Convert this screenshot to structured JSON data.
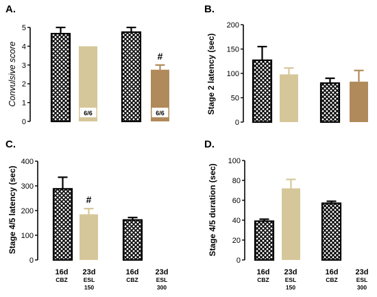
{
  "colors": {
    "cbz": "hatched-black",
    "esl150": "#d6c79a",
    "esl300": "#b08a5b",
    "axis": "#000000"
  },
  "x_groups": {
    "labels_main": [
      "16d",
      "23d",
      "16d",
      "23d"
    ],
    "labels_sub": [
      "CBZ",
      "ESL\n150",
      "CBZ",
      "ESL\n300"
    ]
  },
  "chart_data": [
    {
      "panel": "A.",
      "type": "bar",
      "ylabel": "Convulsive score",
      "ylim": [
        0,
        5
      ],
      "yticks": [
        0,
        1,
        2,
        3,
        4,
        5
      ],
      "bars": [
        {
          "group": "16d CBZ",
          "value": 4.67,
          "err": 0.33,
          "fill": "cbz"
        },
        {
          "group": "23d ESL 150",
          "value": 4.0,
          "err": 0,
          "fill": "esl150",
          "label": "6/6"
        },
        {
          "group": "16d CBZ",
          "value": 4.75,
          "err": 0.25,
          "fill": "cbz"
        },
        {
          "group": "23d ESL 300",
          "value": 2.75,
          "err": 0.25,
          "fill": "esl300",
          "label": "6/6",
          "marker": "#"
        }
      ]
    },
    {
      "panel": "B.",
      "type": "bar",
      "ylabel": "Stage 2 latency (sec)",
      "ylim": [
        0,
        200
      ],
      "yticks": [
        0,
        50,
        100,
        150,
        200
      ],
      "bars": [
        {
          "group": "16d CBZ",
          "value": 127,
          "err": 28,
          "fill": "cbz"
        },
        {
          "group": "23d ESL 150",
          "value": 98,
          "err": 13,
          "fill": "esl150"
        },
        {
          "group": "16d CBZ",
          "value": 80,
          "err": 10,
          "fill": "cbz"
        },
        {
          "group": "23d ESL 300",
          "value": 83,
          "err": 23,
          "fill": "esl300"
        }
      ]
    },
    {
      "panel": "C.",
      "type": "bar",
      "ylabel": "Stage 4/5 latency (sec)",
      "ylim": [
        0,
        400
      ],
      "yticks": [
        0,
        100,
        200,
        300,
        400
      ],
      "bars": [
        {
          "group": "16d CBZ",
          "value": 288,
          "err": 47,
          "fill": "cbz"
        },
        {
          "group": "23d ESL 150",
          "value": 185,
          "err": 23,
          "fill": "esl150",
          "marker": "#"
        },
        {
          "group": "16d CBZ",
          "value": 162,
          "err": 10,
          "fill": "cbz"
        }
      ]
    },
    {
      "panel": "D.",
      "type": "bar",
      "ylabel": "Stage 4/5 duration (sec)",
      "ylim": [
        0,
        100
      ],
      "yticks": [
        0,
        20,
        40,
        60,
        80,
        100
      ],
      "bars": [
        {
          "group": "16d CBZ",
          "value": 39,
          "err": 2,
          "fill": "cbz"
        },
        {
          "group": "23d ESL 150",
          "value": 72,
          "err": 9,
          "fill": "esl150"
        },
        {
          "group": "16d CBZ",
          "value": 57,
          "err": 2,
          "fill": "cbz"
        }
      ]
    }
  ]
}
